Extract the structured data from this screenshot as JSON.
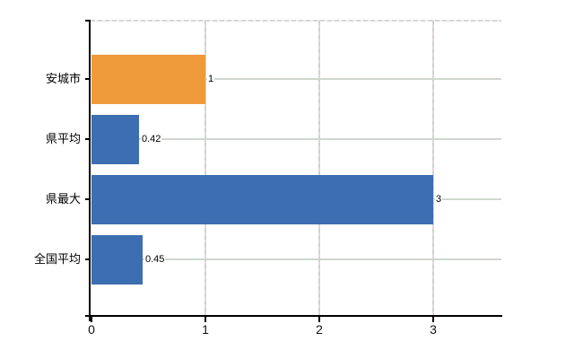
{
  "chart_data": {
    "type": "bar",
    "orientation": "horizontal",
    "title": "",
    "xlabel": "",
    "ylabel": "",
    "categories": [
      "安城市",
      "県平均",
      "県最大",
      "全国平均"
    ],
    "values": [
      1,
      0.42,
      3,
      0.45
    ],
    "value_labels": [
      "1",
      "0.42",
      "3",
      "0.45"
    ],
    "bar_colors": [
      "#EE9A3B",
      "#3C6EB1",
      "#3C6EB1",
      "#3C6EB1"
    ],
    "x_ticks": [
      0,
      1,
      2,
      3
    ],
    "x_tick_labels": [
      "0",
      "1",
      "2",
      "3"
    ],
    "xlim": [
      0,
      3.6
    ],
    "grid": true,
    "legend": "none"
  },
  "colors": {
    "bar_orange": "#EE9A3B",
    "bar_blue": "#3C6EB1",
    "gridline_horizontal": "#CFD7CF",
    "gridline_vertical_a": "#CBD4CB",
    "gridline_vertical_b": "#E4D4DD",
    "axis": "#000000",
    "text": "#000000",
    "background": "#FFFFFF"
  }
}
